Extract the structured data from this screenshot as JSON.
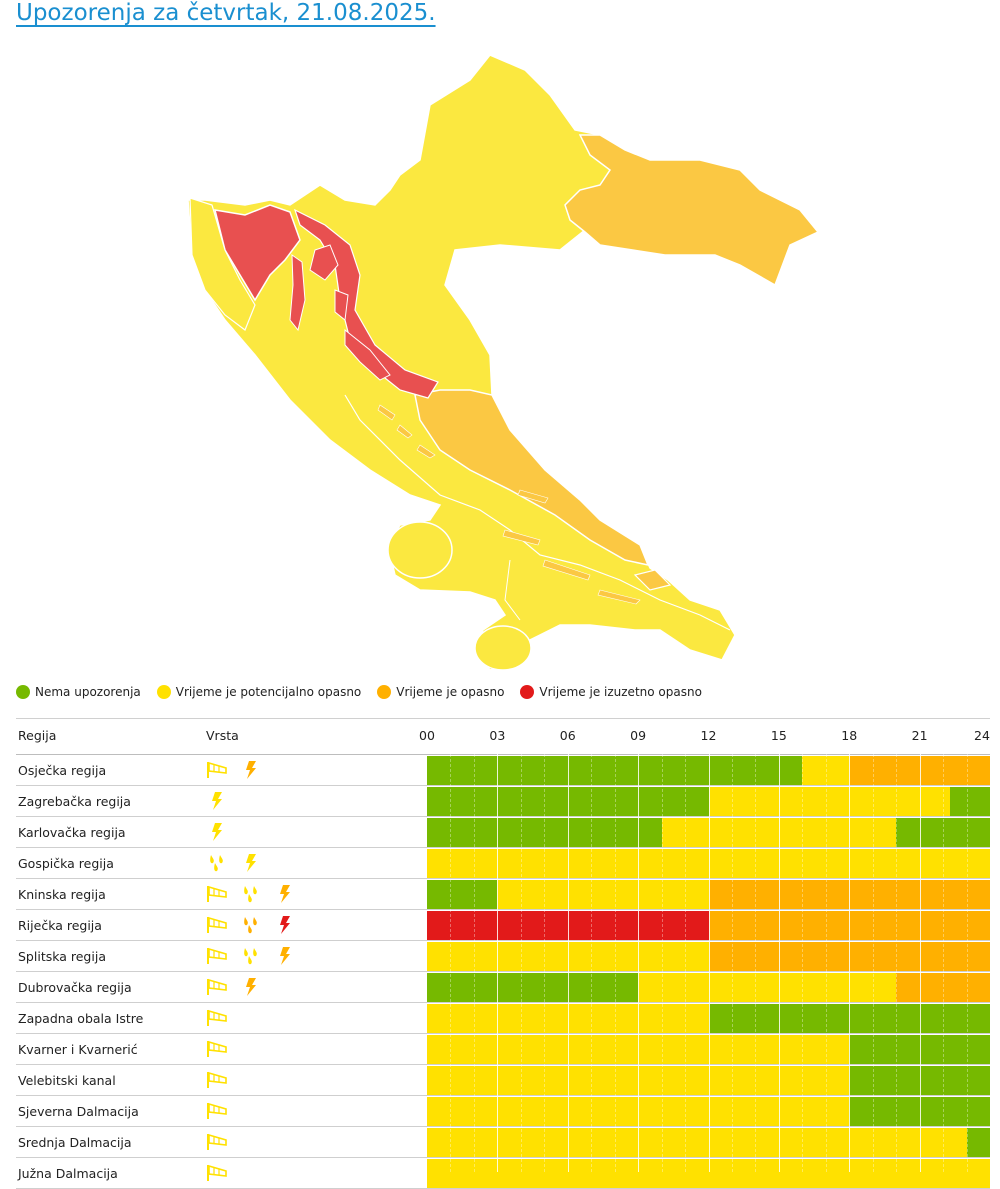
{
  "page": {
    "title": "Upozorenja za četvrtak, 21.08.2025."
  },
  "colors": {
    "green": "#76b900",
    "yellow": "#ffe100",
    "orange": "#ffb000",
    "red": "#e21a1a",
    "map_yellow": "#fbe840",
    "map_orange": "#fbc843",
    "map_red": "#e85050",
    "title_blue": "#1a8fd0"
  },
  "legend": [
    {
      "label": "Nema upozorenja",
      "color": "#76b900"
    },
    {
      "label": "Vrijeme je potencijalno opasno",
      "color": "#ffe100"
    },
    {
      "label": "Vrijeme je opasno",
      "color": "#ffb000"
    },
    {
      "label": "Vrijeme je izuzetno opasno",
      "color": "#e21a1a"
    }
  ],
  "table": {
    "col_region": "Regija",
    "col_type": "Vrsta",
    "hours": [
      "00",
      "03",
      "06",
      "09",
      "12",
      "15",
      "18",
      "21",
      "24"
    ],
    "rows": [
      {
        "name": "Osječka regija",
        "icons": [
          {
            "type": "wind-icon",
            "color": "yellow"
          },
          {
            "type": "thunderstorm-icon",
            "color": "orange"
          }
        ],
        "segments": [
          {
            "to": 16,
            "level": "green"
          },
          {
            "to": 18,
            "level": "yellow"
          },
          {
            "to": 24,
            "level": "orange"
          }
        ]
      },
      {
        "name": "Zagrebačka regija",
        "icons": [
          {
            "type": "thunderstorm-icon",
            "color": "yellow"
          }
        ],
        "segments": [
          {
            "to": 12,
            "level": "green"
          },
          {
            "to": 22.3,
            "level": "yellow"
          },
          {
            "to": 24,
            "level": "green"
          }
        ]
      },
      {
        "name": "Karlovačka regija",
        "icons": [
          {
            "type": "thunderstorm-icon",
            "color": "yellow"
          }
        ],
        "segments": [
          {
            "to": 10,
            "level": "green"
          },
          {
            "to": 20,
            "level": "yellow"
          },
          {
            "to": 24,
            "level": "green"
          }
        ]
      },
      {
        "name": "Gospička regija",
        "icons": [
          {
            "type": "rain-icon",
            "color": "yellow"
          },
          {
            "type": "thunderstorm-icon",
            "color": "yellow"
          }
        ],
        "segments": [
          {
            "to": 24,
            "level": "yellow"
          }
        ]
      },
      {
        "name": "Kninska regija",
        "icons": [
          {
            "type": "wind-icon",
            "color": "yellow"
          },
          {
            "type": "rain-icon",
            "color": "yellow"
          },
          {
            "type": "thunderstorm-icon",
            "color": "orange"
          }
        ],
        "segments": [
          {
            "to": 3,
            "level": "green"
          },
          {
            "to": 12,
            "level": "yellow"
          },
          {
            "to": 24,
            "level": "orange"
          }
        ]
      },
      {
        "name": "Riječka regija",
        "icons": [
          {
            "type": "wind-icon",
            "color": "yellow"
          },
          {
            "type": "rain-icon",
            "color": "orange"
          },
          {
            "type": "thunderstorm-icon",
            "color": "red"
          }
        ],
        "segments": [
          {
            "to": 12,
            "level": "red"
          },
          {
            "to": 24,
            "level": "orange"
          }
        ]
      },
      {
        "name": "Splitska regija",
        "icons": [
          {
            "type": "wind-icon",
            "color": "yellow"
          },
          {
            "type": "rain-icon",
            "color": "yellow"
          },
          {
            "type": "thunderstorm-icon",
            "color": "orange"
          }
        ],
        "segments": [
          {
            "to": 12,
            "level": "yellow"
          },
          {
            "to": 24,
            "level": "orange"
          }
        ]
      },
      {
        "name": "Dubrovačka regija",
        "icons": [
          {
            "type": "wind-icon",
            "color": "yellow"
          },
          {
            "type": "thunderstorm-icon",
            "color": "orange"
          }
        ],
        "segments": [
          {
            "to": 9,
            "level": "green"
          },
          {
            "to": 20,
            "level": "yellow"
          },
          {
            "to": 24,
            "level": "orange"
          }
        ]
      },
      {
        "name": "Zapadna obala Istre",
        "icons": [
          {
            "type": "wind-icon",
            "color": "yellow"
          }
        ],
        "segments": [
          {
            "to": 12,
            "level": "yellow"
          },
          {
            "to": 24,
            "level": "green"
          }
        ]
      },
      {
        "name": "Kvarner i Kvarnerić",
        "icons": [
          {
            "type": "wind-icon",
            "color": "yellow"
          }
        ],
        "segments": [
          {
            "to": 18,
            "level": "yellow"
          },
          {
            "to": 24,
            "level": "green"
          }
        ]
      },
      {
        "name": "Velebitski kanal",
        "icons": [
          {
            "type": "wind-icon",
            "color": "yellow"
          }
        ],
        "segments": [
          {
            "to": 18,
            "level": "yellow"
          },
          {
            "to": 24,
            "level": "green"
          }
        ]
      },
      {
        "name": "Sjeverna Dalmacija",
        "icons": [
          {
            "type": "wind-icon",
            "color": "yellow"
          }
        ],
        "segments": [
          {
            "to": 18,
            "level": "yellow"
          },
          {
            "to": 24,
            "level": "green"
          }
        ]
      },
      {
        "name": "Srednja Dalmacija",
        "icons": [
          {
            "type": "wind-icon",
            "color": "yellow"
          }
        ],
        "segments": [
          {
            "to": 23,
            "level": "yellow"
          },
          {
            "to": 24,
            "level": "green"
          }
        ]
      },
      {
        "name": "Južna Dalmacija",
        "icons": [
          {
            "type": "wind-icon",
            "color": "yellow"
          }
        ],
        "segments": [
          {
            "to": 24,
            "level": "yellow"
          }
        ]
      }
    ]
  }
}
